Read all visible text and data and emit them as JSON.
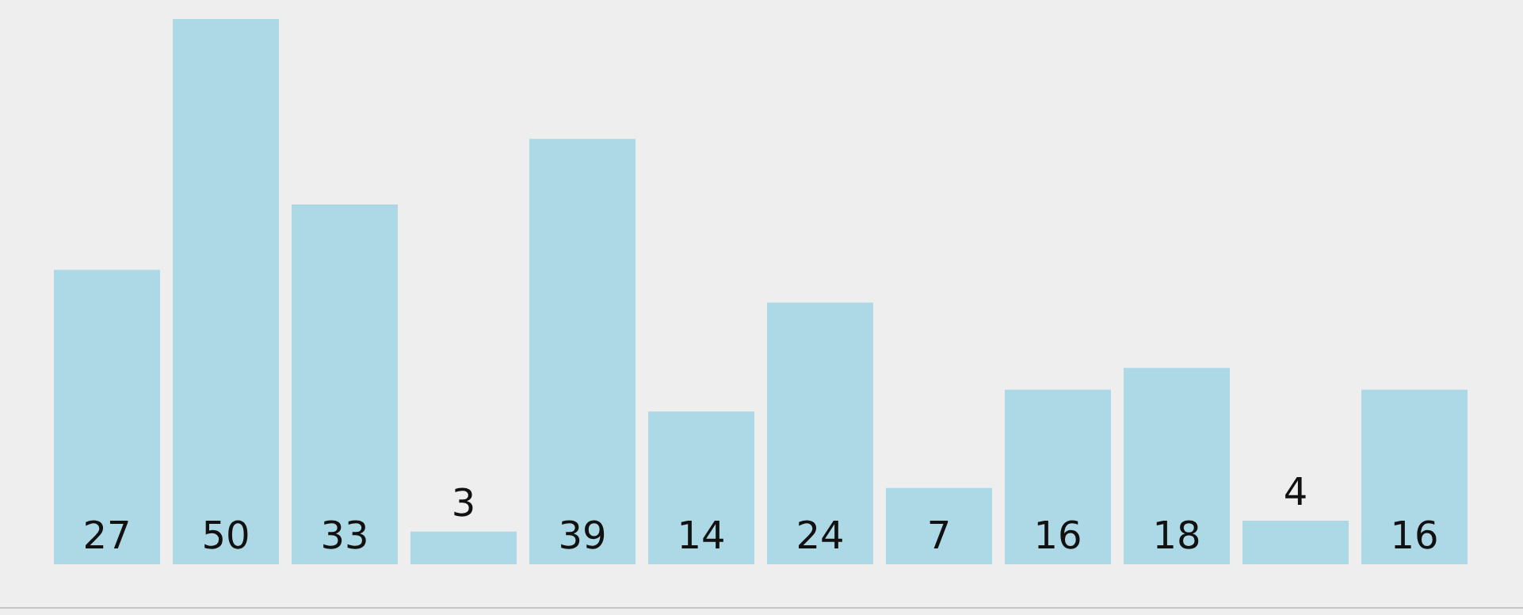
{
  "chart_data": {
    "type": "bar",
    "categories": [
      null,
      null,
      null,
      null,
      null,
      null,
      null,
      null,
      null,
      null,
      null,
      null
    ],
    "values": [
      27,
      50,
      33,
      3,
      39,
      14,
      24,
      7,
      16,
      18,
      4,
      16
    ],
    "color": "#add8e6",
    "data_labels": true
  }
}
